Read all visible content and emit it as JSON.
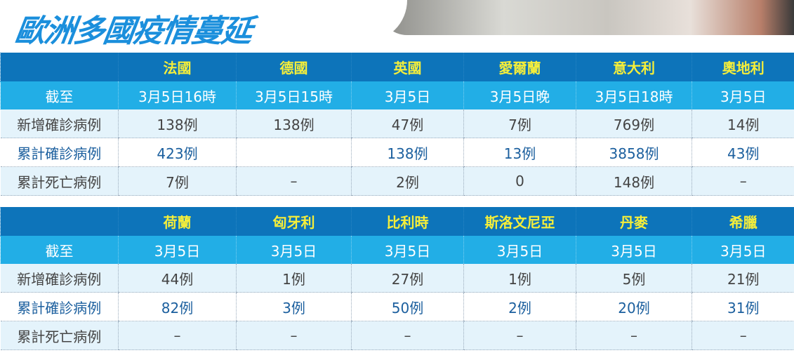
{
  "title": "歐洲多國疫情蔓延",
  "row_labels": [
    "截至",
    "新增確診病例",
    "累計確診病例",
    "累計死亡病例"
  ],
  "tables": [
    {
      "countries": [
        "法國",
        "德國",
        "英國",
        "愛爾蘭",
        "意大利",
        "奧地利"
      ],
      "as_of": [
        "3月5日16時",
        "3月5日15時",
        "3月5日",
        "3月5日晚",
        "3月5日18時",
        "3月5日"
      ],
      "new_cases": [
        "138例",
        "138例",
        "47例",
        "7例",
        "769例",
        "14例"
      ],
      "total_cases": [
        "423例",
        "",
        "138例",
        "13例",
        "3858例",
        "43例"
      ],
      "deaths": [
        "7例",
        "–",
        "2例",
        "0",
        "148例",
        "–"
      ]
    },
    {
      "countries": [
        "荷蘭",
        "匈牙利",
        "比利時",
        "斯洛文尼亞",
        "丹麥",
        "希臘"
      ],
      "as_of": [
        "3月5日",
        "3月5日",
        "3月5日",
        "3月5日",
        "3月5日",
        "3月5日"
      ],
      "new_cases": [
        "44例",
        "1例",
        "27例",
        "1例",
        "5例",
        "21例"
      ],
      "total_cases": [
        "82例",
        "3例",
        "50例",
        "2例",
        "20例",
        "31例"
      ],
      "deaths": [
        "–",
        "–",
        "–",
        "–",
        "–",
        "–"
      ]
    }
  ]
}
